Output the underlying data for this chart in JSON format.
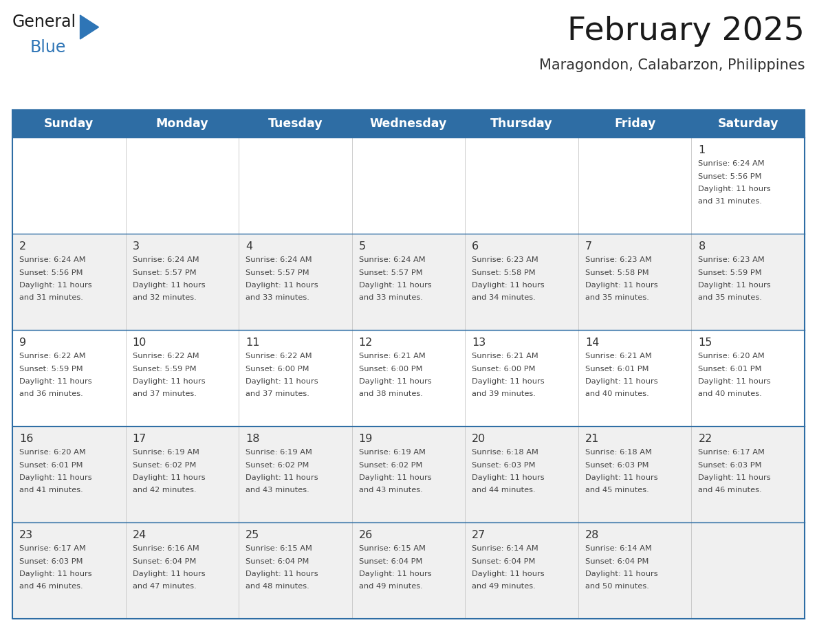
{
  "title": "February 2025",
  "subtitle": "Maragondon, Calabarzon, Philippines",
  "days_of_week": [
    "Sunday",
    "Monday",
    "Tuesday",
    "Wednesday",
    "Thursday",
    "Friday",
    "Saturday"
  ],
  "header_bg": "#2E6DA4",
  "header_text": "#FFFFFF",
  "row_bg_white": "#FFFFFF",
  "row_bg_gray": "#F0F0F0",
  "cell_text_color": "#444444",
  "day_number_color": "#333333",
  "border_color": "#2E6DA4",
  "title_color": "#1a1a1a",
  "subtitle_color": "#333333",
  "logo_general_color": "#1a1a1a",
  "logo_blue_color": "#2E75B6",
  "calendar_data": [
    [
      {
        "day": 0,
        "info": ""
      },
      {
        "day": 0,
        "info": ""
      },
      {
        "day": 0,
        "info": ""
      },
      {
        "day": 0,
        "info": ""
      },
      {
        "day": 0,
        "info": ""
      },
      {
        "day": 0,
        "info": ""
      },
      {
        "day": 1,
        "info": "Sunrise: 6:24 AM\nSunset: 5:56 PM\nDaylight: 11 hours\nand 31 minutes."
      }
    ],
    [
      {
        "day": 2,
        "info": "Sunrise: 6:24 AM\nSunset: 5:56 PM\nDaylight: 11 hours\nand 31 minutes."
      },
      {
        "day": 3,
        "info": "Sunrise: 6:24 AM\nSunset: 5:57 PM\nDaylight: 11 hours\nand 32 minutes."
      },
      {
        "day": 4,
        "info": "Sunrise: 6:24 AM\nSunset: 5:57 PM\nDaylight: 11 hours\nand 33 minutes."
      },
      {
        "day": 5,
        "info": "Sunrise: 6:24 AM\nSunset: 5:57 PM\nDaylight: 11 hours\nand 33 minutes."
      },
      {
        "day": 6,
        "info": "Sunrise: 6:23 AM\nSunset: 5:58 PM\nDaylight: 11 hours\nand 34 minutes."
      },
      {
        "day": 7,
        "info": "Sunrise: 6:23 AM\nSunset: 5:58 PM\nDaylight: 11 hours\nand 35 minutes."
      },
      {
        "day": 8,
        "info": "Sunrise: 6:23 AM\nSunset: 5:59 PM\nDaylight: 11 hours\nand 35 minutes."
      }
    ],
    [
      {
        "day": 9,
        "info": "Sunrise: 6:22 AM\nSunset: 5:59 PM\nDaylight: 11 hours\nand 36 minutes."
      },
      {
        "day": 10,
        "info": "Sunrise: 6:22 AM\nSunset: 5:59 PM\nDaylight: 11 hours\nand 37 minutes."
      },
      {
        "day": 11,
        "info": "Sunrise: 6:22 AM\nSunset: 6:00 PM\nDaylight: 11 hours\nand 37 minutes."
      },
      {
        "day": 12,
        "info": "Sunrise: 6:21 AM\nSunset: 6:00 PM\nDaylight: 11 hours\nand 38 minutes."
      },
      {
        "day": 13,
        "info": "Sunrise: 6:21 AM\nSunset: 6:00 PM\nDaylight: 11 hours\nand 39 minutes."
      },
      {
        "day": 14,
        "info": "Sunrise: 6:21 AM\nSunset: 6:01 PM\nDaylight: 11 hours\nand 40 minutes."
      },
      {
        "day": 15,
        "info": "Sunrise: 6:20 AM\nSunset: 6:01 PM\nDaylight: 11 hours\nand 40 minutes."
      }
    ],
    [
      {
        "day": 16,
        "info": "Sunrise: 6:20 AM\nSunset: 6:01 PM\nDaylight: 11 hours\nand 41 minutes."
      },
      {
        "day": 17,
        "info": "Sunrise: 6:19 AM\nSunset: 6:02 PM\nDaylight: 11 hours\nand 42 minutes."
      },
      {
        "day": 18,
        "info": "Sunrise: 6:19 AM\nSunset: 6:02 PM\nDaylight: 11 hours\nand 43 minutes."
      },
      {
        "day": 19,
        "info": "Sunrise: 6:19 AM\nSunset: 6:02 PM\nDaylight: 11 hours\nand 43 minutes."
      },
      {
        "day": 20,
        "info": "Sunrise: 6:18 AM\nSunset: 6:03 PM\nDaylight: 11 hours\nand 44 minutes."
      },
      {
        "day": 21,
        "info": "Sunrise: 6:18 AM\nSunset: 6:03 PM\nDaylight: 11 hours\nand 45 minutes."
      },
      {
        "day": 22,
        "info": "Sunrise: 6:17 AM\nSunset: 6:03 PM\nDaylight: 11 hours\nand 46 minutes."
      }
    ],
    [
      {
        "day": 23,
        "info": "Sunrise: 6:17 AM\nSunset: 6:03 PM\nDaylight: 11 hours\nand 46 minutes."
      },
      {
        "day": 24,
        "info": "Sunrise: 6:16 AM\nSunset: 6:04 PM\nDaylight: 11 hours\nand 47 minutes."
      },
      {
        "day": 25,
        "info": "Sunrise: 6:15 AM\nSunset: 6:04 PM\nDaylight: 11 hours\nand 48 minutes."
      },
      {
        "day": 26,
        "info": "Sunrise: 6:15 AM\nSunset: 6:04 PM\nDaylight: 11 hours\nand 49 minutes."
      },
      {
        "day": 27,
        "info": "Sunrise: 6:14 AM\nSunset: 6:04 PM\nDaylight: 11 hours\nand 49 minutes."
      },
      {
        "day": 28,
        "info": "Sunrise: 6:14 AM\nSunset: 6:04 PM\nDaylight: 11 hours\nand 50 minutes."
      },
      {
        "day": 0,
        "info": ""
      }
    ]
  ],
  "row_backgrounds": [
    "#FFFFFF",
    "#F0F0F0",
    "#FFFFFF",
    "#F0F0F0",
    "#F0F0F0"
  ]
}
